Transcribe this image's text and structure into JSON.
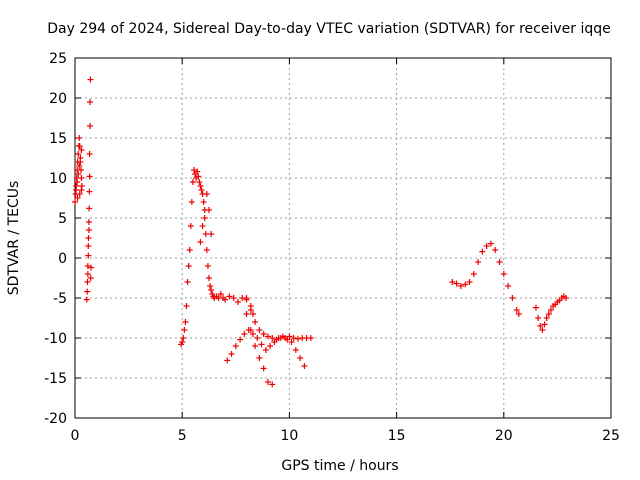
{
  "chart_data": {
    "type": "scatter",
    "title": "Day 294 of 2024, Sidereal Day-to-day VTEC variation (SDTVAR) for receiver iqqe",
    "xlabel": "GPS time / hours",
    "ylabel": "SDTVAR / TECUs",
    "xlim": [
      0,
      25
    ],
    "ylim": [
      -20,
      25
    ],
    "xticks": [
      "0",
      "5",
      "10",
      "15",
      "20",
      "25"
    ],
    "yticks": [
      "-20",
      "-15",
      "-10",
      "-5",
      "0",
      "5",
      "10",
      "15",
      "20",
      "25"
    ],
    "grid": true,
    "marker": "plus",
    "color": "#ee0000",
    "series": [
      {
        "name": "SDTVAR",
        "x": [
          0.0,
          0.03,
          0.05,
          0.08,
          0.1,
          0.12,
          0.15,
          0.18,
          0.2,
          0.22,
          0.25,
          0.28,
          0.3,
          0.32,
          0.05,
          0.1,
          0.15,
          0.2,
          0.25,
          0.3,
          0.12,
          0.22,
          0.3,
          0.55,
          0.57,
          0.58,
          0.6,
          0.6,
          0.62,
          0.62,
          0.63,
          0.65,
          0.65,
          0.66,
          0.67,
          0.68,
          0.68,
          0.7,
          0.7,
          0.72,
          0.73,
          0.75,
          4.95,
          5.0,
          5.05,
          5.1,
          5.15,
          5.2,
          5.25,
          5.3,
          5.35,
          5.4,
          5.45,
          5.5,
          5.55,
          5.6,
          5.65,
          5.7,
          5.75,
          5.8,
          5.85,
          5.9,
          5.95,
          6.0,
          6.05,
          6.1,
          6.15,
          6.2,
          6.25,
          6.3,
          6.35,
          6.4,
          6.45,
          6.5,
          6.6,
          6.7,
          6.8,
          6.9,
          7.0,
          7.2,
          7.4,
          7.6,
          7.8,
          8.0,
          8.2,
          8.3,
          5.85,
          5.95,
          6.05,
          6.15,
          6.25,
          6.35,
          7.1,
          7.3,
          7.5,
          7.7,
          7.9,
          8.1,
          8.3,
          8.5,
          8.7,
          8.9,
          9.1,
          9.3,
          9.5,
          9.7,
          9.9,
          10.1,
          10.3,
          10.5,
          10.7,
          8.0,
          8.2,
          8.4,
          8.6,
          8.8,
          9.0,
          9.2,
          9.4,
          9.6,
          9.8,
          10.0,
          10.2,
          10.4,
          10.6,
          10.8,
          11.0,
          8.0,
          8.2,
          8.4,
          8.6,
          8.8,
          9.0,
          9.2,
          17.6,
          17.8,
          18.0,
          18.2,
          18.4,
          18.6,
          18.8,
          19.0,
          19.2,
          19.4,
          19.6,
          19.8,
          20.0,
          20.2,
          20.4,
          20.6,
          20.7,
          21.5,
          21.6,
          21.7,
          21.8,
          21.9,
          22.0,
          22.1,
          22.2,
          22.3,
          22.4,
          22.5,
          22.6,
          22.7,
          22.8,
          22.9
        ],
        "y": [
          7.0,
          8.0,
          9.0,
          10.0,
          11.0,
          12.0,
          13.0,
          14.0,
          15.0,
          14.0,
          12.0,
          11.0,
          10.0,
          9.0,
          8.5,
          9.5,
          10.5,
          11.5,
          12.5,
          13.5,
          7.5,
          8.0,
          8.5,
          -5.2,
          -4.2,
          -3.0,
          -2.0,
          -1.0,
          0.3,
          1.5,
          2.5,
          3.5,
          4.5,
          6.2,
          8.3,
          10.2,
          13.0,
          16.5,
          19.5,
          22.3,
          -2.5,
          -1.2,
          -10.8,
          -10.5,
          -10.0,
          -9.0,
          -8.0,
          -6.0,
          -3.0,
          -1.0,
          1.0,
          4.0,
          7.0,
          9.5,
          11.0,
          10.5,
          10.0,
          10.8,
          10.2,
          9.5,
          9.0,
          8.5,
          8.0,
          7.0,
          5.0,
          3.0,
          1.0,
          -1.0,
          -2.5,
          -3.5,
          -4.0,
          -4.5,
          -4.8,
          -5.0,
          -4.8,
          -5.0,
          -4.5,
          -5.0,
          -5.2,
          -4.8,
          -5.0,
          -5.5,
          -5.0,
          -5.2,
          -6.0,
          -7.0,
          2.0,
          4.0,
          6.0,
          8.0,
          6.0,
          3.0,
          -12.8,
          -12.0,
          -11.0,
          -10.2,
          -9.5,
          -9.0,
          -9.5,
          -10.0,
          -10.8,
          -11.5,
          -11.0,
          -10.5,
          -10.0,
          -9.8,
          -10.2,
          -10.5,
          -11.5,
          -12.5,
          -13.5,
          -5.0,
          -6.5,
          -8.0,
          -9.0,
          -9.5,
          -9.8,
          -10.0,
          -10.2,
          -10.0,
          -10.0,
          -9.8,
          -10.0,
          -10.1,
          -10.0,
          -10.0,
          -10.0,
          -7.0,
          -9.0,
          -11.0,
          -12.5,
          -13.8,
          -15.5,
          -15.8,
          -3.0,
          -3.2,
          -3.5,
          -3.3,
          -3.0,
          -2.0,
          -0.5,
          0.8,
          1.5,
          1.8,
          1.0,
          -0.5,
          -2.0,
          -3.5,
          -5.0,
          -6.5,
          -7.0,
          -6.2,
          -7.5,
          -8.5,
          -9.0,
          -8.3,
          -7.5,
          -7.0,
          -6.5,
          -6.0,
          -5.8,
          -5.5,
          -5.3,
          -5.0,
          -4.8,
          -5.0
        ]
      }
    ]
  }
}
